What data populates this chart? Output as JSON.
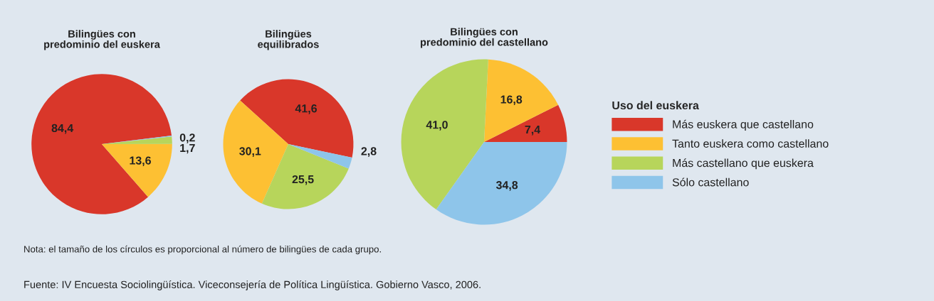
{
  "chart_data": [
    {
      "type": "pie",
      "title": "Bilingües con\npredominio del euskera",
      "categories": [
        "Más euskera que castellano",
        "Tanto euskera como castellano",
        "Más castellano que euskera",
        "Sólo castellano"
      ],
      "values": [
        84.4,
        13.6,
        1.7,
        0.2
      ],
      "colors": [
        "#d9372a",
        "#fdc033",
        "#b7d55b",
        "#8ec5ea"
      ],
      "value_labels": [
        "84,4",
        "13,6",
        "1,7",
        "0,2"
      ],
      "legend": "right",
      "legend_title": "Uso del euskera"
    },
    {
      "type": "pie",
      "title": "Bilingües\nequilibrados",
      "values": [
        41.6,
        30.1,
        25.5,
        2.8
      ],
      "colors": [
        "#d9372a",
        "#fdc033",
        "#b7d55b",
        "#8ec5ea"
      ],
      "value_labels": [
        "41,6",
        "30,1",
        "25,5",
        "2,8"
      ]
    },
    {
      "type": "pie",
      "title": "Bilingües con\npredominio del castellano",
      "values": [
        7.4,
        16.8,
        41.0,
        34.8
      ],
      "colors": [
        "#d9372a",
        "#fdc033",
        "#b7d55b",
        "#8ec5ea"
      ],
      "value_labels": [
        "7,4",
        "16,8",
        "41,0",
        "34,8"
      ],
      "annotations": [
        "Nota: el tamaño de los círculos es proporcional al número de bilingües de cada grupo.",
        "Fuente: IV Encuesta Sociolingüística. Viceconsejería de Política Lingüística. Gobierno Vasco, 2006."
      ]
    }
  ]
}
